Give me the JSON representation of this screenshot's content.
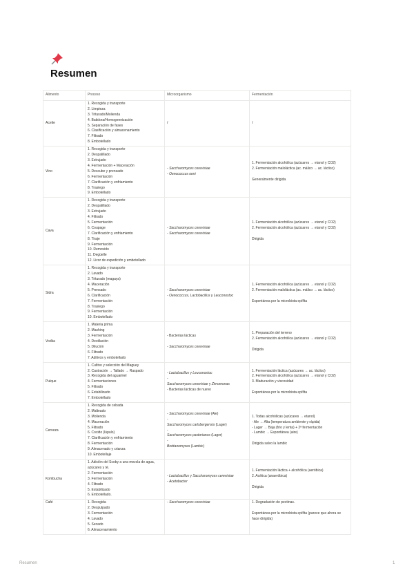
{
  "icon": "pushpin-icon",
  "title": "Resumen",
  "table": {
    "headers": [
      "Alimento",
      "Proceso",
      "Microorganismo",
      "Fermentación"
    ],
    "rows": [
      {
        "food": "Aceite",
        "process": [
          "1. Recogida y transporte",
          "2. Limpieza",
          "3. Triturado/Molienda",
          "4. Batidora/Homogeneización",
          "5. Separación de fases",
          "6. Clasificación y almacenamiento",
          "7. Filtrado",
          "8. Embotellado"
        ],
        "micro": [
          [
            {
              "t": "/"
            }
          ]
        ],
        "ferm": [
          "/"
        ]
      },
      {
        "food": "Vino",
        "process": [
          "1. Recogida y transporte",
          "2. Despalillado",
          "3. Estrujado",
          "4. Fermentación + Maceración",
          "5. Descube y prensado",
          "6. Fermentación",
          "7. Clarificación y enfriamiento",
          "8. Trasiego",
          "9. Embotellado"
        ],
        "micro": [
          [
            {
              "t": "- "
            },
            {
              "t": "Saccharomyces cerevisiae",
              "i": true
            }
          ],
          [
            {
              "t": "- "
            },
            {
              "t": "Oenococcus oeni",
              "i": true
            }
          ]
        ],
        "ferm": [
          "1. Fermentación alcohólica (azúcares → etanol y CO2)",
          "2. Fermentación maloláctica (ac. málico → ac. láctico)",
          "",
          "Generalmente dirigida"
        ]
      },
      {
        "food": "Cava",
        "process": [
          "1. Recogida y transporte",
          "2. Despalillado",
          "3. Estrujado",
          "4. Filtrado",
          "5. Fermentación",
          "6. Coupage",
          "7. Clarificación y enfriamiento",
          "8. Tiraje",
          "9. Fermentación",
          "10. Removido",
          "11. Degüelle",
          "12. Licor de expedición y embotellado"
        ],
        "micro": [
          [
            {
              "t": "- "
            },
            {
              "t": "Saccharomyces cerevisiae",
              "i": true
            }
          ],
          [
            {
              "t": "- "
            },
            {
              "t": "Saccharomyces cerevisiae",
              "i": true
            }
          ]
        ],
        "ferm": [
          "1. Fermentación alcohólica (azúcares → etanol y CO2)",
          "2. Fermentación alcohólica (azúcares → etanol y CO2)",
          "",
          "Dirigida"
        ]
      },
      {
        "food": "Sidra",
        "process": [
          "1. Recogida y transporte",
          "2. Lavado",
          "3. Triturado (magaya)",
          "4. Maceración",
          "5. Prensado",
          "6. Clarificación",
          "7. Fermentación",
          "8. Trasiego",
          "9. Fermentación",
          "10. Embotellado"
        ],
        "micro": [
          [
            {
              "t": "- "
            },
            {
              "t": "Saccharomyces cerevisiae",
              "i": true
            }
          ],
          [
            {
              "t": "- "
            },
            {
              "t": "Oenococcus, Lactobacillus",
              "i": true
            },
            {
              "t": " y "
            },
            {
              "t": "Leuconostoc",
              "i": true
            }
          ]
        ],
        "ferm": [
          "1. Fermentación alcohólica (azúcares → etanol y CO2)",
          "2. Fermentación maloláctica (ac. málico → ac. láctico)",
          "",
          "Espontánea por la microbiota epífita"
        ]
      },
      {
        "food": "Vodka",
        "process": [
          "1. Materia prima",
          "2. Mashing",
          "3. Fermentación",
          "4. Destilación",
          "5. Dilución",
          "6. Filtrado",
          "7. Aditivos y embotellado"
        ],
        "micro": [
          [
            {
              "t": "- Bacterias lácticas"
            }
          ],
          [
            {
              "t": ""
            }
          ],
          [
            {
              "t": "- "
            },
            {
              "t": "Saccharomyces cerevisiae",
              "i": true
            }
          ]
        ],
        "ferm": [
          "1. Preparación del terreno",
          "2. Fermentación alcohólica (azúcares → etanol y CO2)",
          "",
          "Dirigida"
        ]
      },
      {
        "food": "Pulque",
        "process": [
          "1. Cultivo y selección del Maguey",
          "2. Castración → Tallado → Raspado",
          "3. Recogida del aguamiel",
          "4. Fermentaciones",
          "5. Filtrado",
          "6. Estabilizado",
          "7. Embotellado"
        ],
        "micro": [
          [
            {
              "t": "- "
            },
            {
              "t": "Lactobacillus",
              "i": true
            },
            {
              "t": " y "
            },
            {
              "t": "Leuconostoc",
              "i": true
            }
          ],
          [
            {
              "t": "-"
            }
          ],
          [
            {
              "t": "Saccharomyces cerevisiae",
              "i": true
            },
            {
              "t": " y "
            },
            {
              "t": "Zimomonas",
              "i": true
            }
          ],
          [
            {
              "t": "- Bacterias lácticas de nuevo"
            }
          ]
        ],
        "ferm": [
          "1. Fermentación láctica (azúcares → ac. láctico)",
          "2. Fermentación alcohólica (azúcares → etanol y CO2)",
          "3. Maduración y viscosidad",
          "",
          "Espontánea por la microbiota epífita"
        ]
      },
      {
        "food": "Cerveza",
        "process": [
          "1. Recogida de cebada",
          "2. Malteado",
          "3. Molienda",
          "4. Maceración",
          "5. Filtrado",
          "6. Cocido (lúpulo)",
          "7. Clarificación y enfriamiento",
          "8. Fermentación",
          "9. Almacenado y crianza",
          "10. Embotellaje"
        ],
        "micro": [
          [
            {
              "t": "- "
            },
            {
              "t": "Saccharomyces cerevisiae",
              "i": true
            },
            {
              "t": " (Ale)"
            }
          ],
          [
            {
              "t": "-"
            }
          ],
          [
            {
              "t": "Saccharomyces carlsbergensis",
              "i": true
            },
            {
              "t": " (Lager)"
            }
          ],
          [
            {
              "t": "-"
            }
          ],
          [
            {
              "t": "Saccharomyces pastorianus",
              "i": true
            },
            {
              "t": " (Lager)"
            }
          ],
          [
            {
              "t": "-"
            }
          ],
          [
            {
              "t": "Brettanomyces",
              "i": true
            },
            {
              "t": " (Lambic)"
            }
          ]
        ],
        "ferm": [
          "1. Todas alcohólicas (azúcares → etanol)",
          "- Ale → Alta (temperatura ambiente y rápida)",
          "- Lager → Baja (frío y lenta) + 2ª fermentación",
          "- Lambic → Espontánea (aire)",
          "",
          "Dirigida salvo la lambic"
        ]
      },
      {
        "food": "Kombucha",
        "process": [
          "1. Adición del Scoby a una mezcla de agua, azúcares y té.",
          "2. Fermentación",
          "3. Fermentación",
          "4. Filtrado",
          "5. Estabilizado",
          "6. Embotellado."
        ],
        "micro": [
          [
            {
              "t": "- "
            },
            {
              "t": "Lactobacillus",
              "i": true
            },
            {
              "t": " y "
            },
            {
              "t": "Saccharomyces cerevisiae",
              "i": true
            }
          ],
          [
            {
              "t": "- "
            },
            {
              "t": "Acetobacter",
              "i": true
            }
          ]
        ],
        "ferm": [
          "1. Fermentación láctica + alcohólica (aeróbica)",
          "2. Acética (anaeróbica)",
          "",
          "Dirigida"
        ]
      },
      {
        "food": "Café",
        "top": true,
        "process": [
          "1. Recogida",
          "2. Despulpado",
          "3. Fermentación",
          "4. Lavado",
          "5. Secado",
          "6. Almacenamiento"
        ],
        "micro": [
          [
            {
              "t": "- "
            },
            {
              "t": "Saccharomyces cerevisiae",
              "i": true
            }
          ]
        ],
        "ferm": [
          "1. Degradación de pectinas.",
          "",
          "Espontánea por la microbiota epífita (parece que ahora se hace dirigida)"
        ]
      }
    ]
  },
  "footer": {
    "title": "Resumen",
    "page": "1"
  }
}
